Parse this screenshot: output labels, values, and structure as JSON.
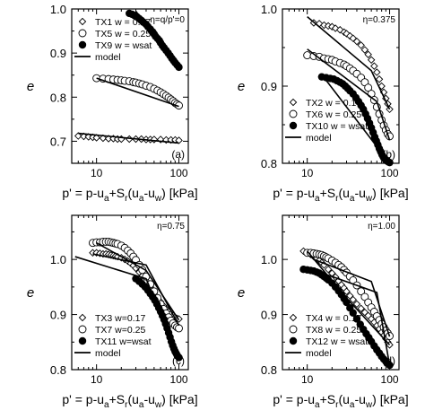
{
  "chart_data": [
    {
      "type": "scatter",
      "x_scale": "log",
      "xlim": [
        5,
        130
      ],
      "ylim": [
        0.65,
        1.0
      ],
      "x_ticks": [
        "10",
        "100"
      ],
      "y_ticks": [
        "0.7",
        "0.8",
        "0.9",
        "1.0"
      ],
      "ylabel": "e",
      "annotation": "η=q/p'=0",
      "panel_label": "(a)",
      "legend": [
        {
          "label": "TX1 w = 0.17",
          "marker": "diamond-open"
        },
        {
          "label": "TX5 w = 0.25",
          "marker": "circle-open"
        },
        {
          "label": "TX9 w = wsat",
          "marker": "circle-filled"
        },
        {
          "label": "model",
          "marker": "line"
        }
      ],
      "series": [
        {
          "name": "TX1 w = 0.17",
          "marker": "diamond-open",
          "x": [
            6,
            7,
            8,
            9,
            10,
            12,
            14,
            16,
            18,
            20,
            25,
            30,
            35,
            40,
            45,
            50,
            60,
            70,
            80,
            90,
            100
          ],
          "y": [
            0.712,
            0.711,
            0.71,
            0.709,
            0.708,
            0.707,
            0.706,
            0.706,
            0.705,
            0.705,
            0.705,
            0.705,
            0.705,
            0.704,
            0.704,
            0.704,
            0.704,
            0.703,
            0.703,
            0.703,
            0.702
          ]
        },
        {
          "name": "TX5 w = 0.25",
          "marker": "circle-open",
          "x": [
            10,
            12,
            14,
            16,
            18,
            20,
            22,
            25,
            28,
            30,
            33,
            36,
            40,
            45,
            50,
            55,
            60,
            65,
            70,
            75,
            80,
            85,
            90,
            95,
            100
          ],
          "y": [
            0.843,
            0.842,
            0.841,
            0.84,
            0.839,
            0.838,
            0.837,
            0.836,
            0.834,
            0.833,
            0.831,
            0.829,
            0.826,
            0.823,
            0.819,
            0.815,
            0.811,
            0.807,
            0.803,
            0.799,
            0.795,
            0.791,
            0.787,
            0.784,
            0.781
          ]
        },
        {
          "name": "TX9 w = wsat",
          "marker": "circle-filled",
          "x": [
            25,
            27,
            29,
            31,
            33,
            35,
            37,
            40,
            42,
            45,
            48,
            50,
            52,
            55,
            58,
            60,
            63,
            66,
            70,
            74,
            78,
            82,
            86,
            90,
            95,
            100
          ],
          "y": [
            0.99,
            0.988,
            0.985,
            0.982,
            0.978,
            0.974,
            0.97,
            0.965,
            0.96,
            0.954,
            0.948,
            0.943,
            0.938,
            0.933,
            0.928,
            0.923,
            0.917,
            0.912,
            0.906,
            0.9,
            0.894,
            0.888,
            0.883,
            0.878,
            0.873,
            0.868
          ]
        },
        {
          "name": "model",
          "marker": "line",
          "x": [
            6,
            100
          ],
          "y": [
            0.718,
            0.696
          ]
        },
        {
          "name": "model",
          "marker": "line",
          "x": [
            10,
            100
          ],
          "y": [
            0.843,
            0.779
          ]
        },
        {
          "name": "model",
          "marker": "line",
          "x": [
            30,
            100
          ],
          "y": [
            0.995,
            0.868
          ]
        }
      ]
    },
    {
      "type": "scatter",
      "x_scale": "log",
      "xlim": [
        5,
        130
      ],
      "ylim": [
        0.8,
        1.0
      ],
      "x_ticks": [
        "10",
        "100"
      ],
      "y_ticks": [
        "0.8",
        "0.9",
        "1.0"
      ],
      "ylabel": "e",
      "annotation": "η=0.375",
      "panel_label": "(b)",
      "legend": [
        {
          "label": "TX2 w = 0.17",
          "marker": "diamond-open"
        },
        {
          "label": "TX6 w = 0.25",
          "marker": "circle-open"
        },
        {
          "label": "TX10 w = wsat",
          "marker": "circle-filled"
        },
        {
          "label": "model",
          "marker": "line"
        }
      ],
      "series": [
        {
          "name": "TX2 w = 0.17",
          "marker": "diamond-open",
          "x": [
            12,
            14,
            16,
            18,
            20,
            22,
            25,
            28,
            30,
            33,
            36,
            40,
            45,
            50,
            55,
            60,
            65,
            70,
            75,
            80,
            85,
            90,
            95,
            100
          ],
          "y": [
            0.982,
            0.981,
            0.979,
            0.978,
            0.977,
            0.975,
            0.973,
            0.97,
            0.968,
            0.965,
            0.962,
            0.958,
            0.953,
            0.947,
            0.941,
            0.934,
            0.926,
            0.918,
            0.909,
            0.9,
            0.892,
            0.884,
            0.877,
            0.87
          ]
        },
        {
          "name": "TX6 w = 0.25",
          "marker": "circle-open",
          "x": [
            10,
            12,
            14,
            16,
            18,
            20,
            22,
            25,
            28,
            30,
            33,
            36,
            40,
            45,
            50,
            55,
            60,
            65,
            70,
            75,
            80,
            85,
            90,
            95,
            100
          ],
          "y": [
            0.94,
            0.939,
            0.938,
            0.936,
            0.935,
            0.934,
            0.932,
            0.93,
            0.928,
            0.926,
            0.923,
            0.92,
            0.916,
            0.911,
            0.905,
            0.898,
            0.89,
            0.882,
            0.873,
            0.864,
            0.856,
            0.849,
            0.843,
            0.838,
            0.835
          ]
        },
        {
          "name": "TX10 w = wsat",
          "marker": "circle-filled",
          "x": [
            15,
            17,
            19,
            21,
            23,
            25,
            27,
            29,
            31,
            33,
            36,
            39,
            42,
            45,
            48,
            51,
            54,
            57,
            60,
            63,
            66,
            69,
            72,
            75,
            78,
            81,
            84,
            87,
            90,
            93,
            96,
            100
          ],
          "y": [
            0.912,
            0.911,
            0.91,
            0.909,
            0.907,
            0.905,
            0.903,
            0.9,
            0.897,
            0.894,
            0.89,
            0.885,
            0.88,
            0.875,
            0.87,
            0.864,
            0.858,
            0.852,
            0.846,
            0.84,
            0.834,
            0.829,
            0.824,
            0.819,
            0.815,
            0.811,
            0.808,
            0.806,
            0.804,
            0.803,
            0.802,
            0.801
          ]
        },
        {
          "name": "model",
          "marker": "line",
          "x": [
            10,
            60,
            100
          ],
          "y": [
            0.99,
            0.92,
            0.87
          ]
        },
        {
          "name": "model",
          "marker": "line",
          "x": [
            10,
            70,
            100
          ],
          "y": [
            0.948,
            0.88,
            0.83
          ]
        },
        {
          "name": "model",
          "marker": "line",
          "x": [
            15,
            100
          ],
          "y": [
            0.915,
            0.8
          ]
        }
      ]
    },
    {
      "type": "scatter",
      "x_scale": "log",
      "xlim": [
        5,
        130
      ],
      "ylim": [
        0.8,
        1.08
      ],
      "x_ticks": [
        "10",
        "100"
      ],
      "y_ticks": [
        "0.8",
        "0.9",
        "1.0"
      ],
      "ylabel": "e",
      "annotation": "η=0.75",
      "panel_label": "(c)",
      "legend": [
        {
          "label": "TX3 w=0.17",
          "marker": "diamond-open"
        },
        {
          "label": "TX7 w=0.25",
          "marker": "circle-open"
        },
        {
          "label": "TX11 w=wsat",
          "marker": "circle-filled"
        },
        {
          "label": "model",
          "marker": "line"
        }
      ],
      "series": [
        {
          "name": "TX3 w=0.17",
          "marker": "diamond-open",
          "x": [
            9,
            10,
            11,
            12,
            13,
            14,
            15,
            16,
            17,
            18,
            20,
            22,
            24,
            26,
            28,
            30,
            33,
            36,
            40,
            45,
            50,
            55,
            60,
            65,
            70,
            75,
            80,
            85,
            90,
            95,
            100
          ],
          "y": [
            1.012,
            1.012,
            1.011,
            1.01,
            1.01,
            1.009,
            1.008,
            1.007,
            1.006,
            1.005,
            1.003,
            1.0,
            0.997,
            0.993,
            0.989,
            0.984,
            0.977,
            0.97,
            0.961,
            0.95,
            0.94,
            0.931,
            0.923,
            0.916,
            0.91,
            0.905,
            0.901,
            0.898,
            0.895,
            0.893,
            0.892
          ]
        },
        {
          "name": "TX7 w=0.25",
          "marker": "circle-open",
          "x": [
            9,
            10,
            11,
            12,
            13,
            14,
            15,
            16,
            17,
            18,
            20,
            22,
            24,
            26,
            28,
            30,
            33,
            36,
            40,
            45,
            50,
            55,
            60,
            65,
            70,
            75,
            80,
            85,
            90,
            95,
            100
          ],
          "y": [
            1.03,
            1.031,
            1.031,
            1.032,
            1.032,
            1.032,
            1.031,
            1.03,
            1.029,
            1.028,
            1.025,
            1.021,
            1.016,
            1.011,
            1.005,
            0.999,
            0.99,
            0.981,
            0.969,
            0.955,
            0.942,
            0.93,
            0.919,
            0.91,
            0.902,
            0.895,
            0.889,
            0.884,
            0.88,
            0.877,
            0.875
          ]
        },
        {
          "name": "TX11 w=wsat",
          "marker": "circle-filled",
          "x": [
            30,
            33,
            36,
            39,
            42,
            45,
            48,
            51,
            54,
            57,
            60,
            63,
            66,
            69,
            72,
            75,
            78,
            81,
            84,
            87,
            90,
            93,
            96,
            100
          ],
          "y": [
            0.965,
            0.96,
            0.955,
            0.95,
            0.944,
            0.938,
            0.932,
            0.926,
            0.919,
            0.912,
            0.905,
            0.898,
            0.891,
            0.883,
            0.875,
            0.867,
            0.859,
            0.851,
            0.844,
            0.838,
            0.833,
            0.829,
            0.825,
            0.822
          ]
        },
        {
          "name": "model",
          "marker": "line",
          "x": [
            9,
            40,
            100
          ],
          "y": [
            1.01,
            0.99,
            0.88
          ]
        },
        {
          "name": "model",
          "marker": "line",
          "x": [
            10,
            40,
            100
          ],
          "y": [
            1.03,
            0.98,
            0.89
          ]
        },
        {
          "name": "model",
          "marker": "line",
          "x": [
            5.5,
            40,
            100
          ],
          "y": [
            1.005,
            0.965,
            0.822
          ]
        }
      ]
    },
    {
      "type": "scatter",
      "x_scale": "log",
      "xlim": [
        5,
        130
      ],
      "ylim": [
        0.8,
        1.08
      ],
      "x_ticks": [
        "10",
        "100"
      ],
      "y_ticks": [
        "0.8",
        "0.9",
        "1.0"
      ],
      "ylabel": "e",
      "annotation": "η=1.00",
      "panel_label": "(d)",
      "legend": [
        {
          "label": "TX4 w = 0.17",
          "marker": "diamond-open"
        },
        {
          "label": "TX8 w = 0.25",
          "marker": "circle-open"
        },
        {
          "label": "TX12 w = wsat",
          "marker": "circle-filled"
        },
        {
          "label": "model",
          "marker": "line"
        }
      ],
      "series": [
        {
          "name": "TX4 w = 0.17",
          "marker": "diamond-open",
          "x": [
            9,
            10,
            11,
            12,
            13,
            14,
            15,
            16,
            18,
            20,
            22,
            24,
            26,
            28,
            30,
            33,
            36,
            40,
            45,
            50,
            55,
            60,
            65,
            70,
            75,
            80,
            85,
            90,
            95,
            100
          ],
          "y": [
            1.015,
            1.012,
            1.009,
            1.005,
            1.002,
            0.998,
            0.994,
            0.99,
            0.982,
            0.975,
            0.968,
            0.961,
            0.954,
            0.948,
            0.942,
            0.934,
            0.927,
            0.919,
            0.911,
            0.904,
            0.898,
            0.892,
            0.886,
            0.88,
            0.874,
            0.868,
            0.862,
            0.856,
            0.85,
            0.845
          ]
        },
        {
          "name": "TX8 w = 0.25",
          "marker": "circle-open",
          "x": [
            10,
            11,
            12,
            13,
            14,
            15,
            16,
            17,
            18,
            20,
            22,
            24,
            26,
            28,
            30,
            33,
            36,
            40,
            45,
            50,
            55,
            60,
            65,
            70,
            75,
            80,
            85,
            90,
            95,
            100
          ],
          "y": [
            1.012,
            1.012,
            1.011,
            1.01,
            1.009,
            1.008,
            1.006,
            1.004,
            1.002,
            0.998,
            0.994,
            0.99,
            0.986,
            0.981,
            0.976,
            0.969,
            0.962,
            0.953,
            0.942,
            0.932,
            0.922,
            0.913,
            0.905,
            0.897,
            0.89,
            0.883,
            0.877,
            0.871,
            0.866,
            0.861
          ]
        },
        {
          "name": "TX12 w = wsat",
          "marker": "circle-filled",
          "x": [
            9,
            10,
            11,
            12,
            13,
            14,
            15,
            16,
            17,
            18,
            20,
            22,
            24,
            26,
            28,
            30,
            33,
            36,
            40,
            44,
            48,
            52,
            56,
            60,
            65,
            70,
            75,
            80,
            85,
            90,
            95,
            100
          ],
          "y": [
            0.982,
            0.981,
            0.98,
            0.979,
            0.977,
            0.975,
            0.972,
            0.969,
            0.966,
            0.963,
            0.957,
            0.95,
            0.943,
            0.936,
            0.929,
            0.922,
            0.912,
            0.903,
            0.892,
            0.882,
            0.873,
            0.865,
            0.858,
            0.851,
            0.843,
            0.836,
            0.83,
            0.824,
            0.819,
            0.815,
            0.811,
            0.808
          ]
        },
        {
          "name": "model",
          "marker": "line",
          "x": [
            12,
            60,
            100
          ],
          "y": [
            1.0,
            0.96,
            0.86
          ]
        },
        {
          "name": "model",
          "marker": "line",
          "x": [
            10,
            30,
            100
          ],
          "y": [
            1.015,
            0.93,
            0.845
          ]
        },
        {
          "name": "model",
          "marker": "line",
          "x": [
            10,
            70,
            100
          ],
          "y": [
            0.985,
            0.94,
            0.808
          ]
        }
      ]
    }
  ],
  "xlabel_parts": {
    "prefix": "p' = p-u",
    "sub_a": "a",
    "plus_s": "+S",
    "sub_r": "r",
    "open_paren": "(u",
    "sub_a2": "a",
    "minus_u": "-u",
    "sub_w": "w",
    "close": ") [kPa]"
  }
}
